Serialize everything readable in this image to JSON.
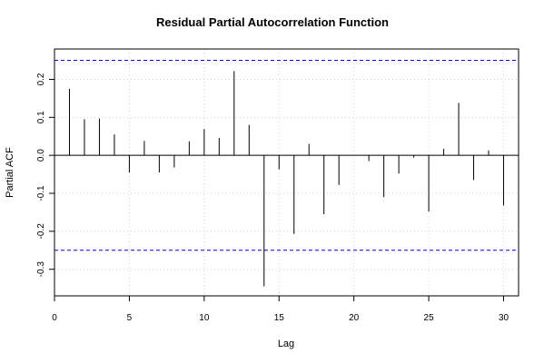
{
  "chart_data": {
    "type": "bar",
    "title": "Residual Partial Autocorrelation Function",
    "xlabel": "Lag",
    "ylabel": "Partial ACF",
    "xlim": [
      0,
      31
    ],
    "ylim": [
      -0.37,
      0.28
    ],
    "x_ticks": [
      0,
      5,
      10,
      15,
      20,
      25,
      30
    ],
    "y_ticks": [
      -0.3,
      -0.2,
      -0.1,
      0.0,
      0.1,
      0.2
    ],
    "x_tick_labels": [
      "0",
      "5",
      "10",
      "15",
      "20",
      "25",
      "30"
    ],
    "y_tick_labels": [
      "-0.3",
      "-0.2",
      "-0.1",
      "0.0",
      "0.1",
      "0.2"
    ],
    "grid": true,
    "confidence_bounds": [
      0.25,
      -0.25
    ],
    "series": [
      {
        "lags": [
          1,
          2,
          3,
          4,
          5,
          6,
          7,
          8,
          9,
          10,
          11,
          12,
          13,
          14,
          15,
          16,
          17,
          18,
          19,
          20,
          21,
          22,
          23,
          24,
          25,
          26,
          27,
          28,
          29,
          30
        ],
        "values": [
          0.175,
          0.095,
          0.097,
          0.055,
          -0.045,
          0.038,
          -0.045,
          -0.032,
          0.037,
          0.069,
          0.046,
          0.222,
          0.08,
          -0.345,
          -0.037,
          -0.207,
          0.03,
          -0.155,
          -0.078,
          0.0,
          -0.015,
          -0.11,
          -0.048,
          -0.006,
          -0.148,
          0.017,
          0.138,
          -0.065,
          0.013,
          -0.132
        ]
      }
    ],
    "colors": {
      "bars": "#000000",
      "bounds": "#0000ff",
      "grid": "#d3d3d3",
      "zero_line": "#000000"
    }
  }
}
